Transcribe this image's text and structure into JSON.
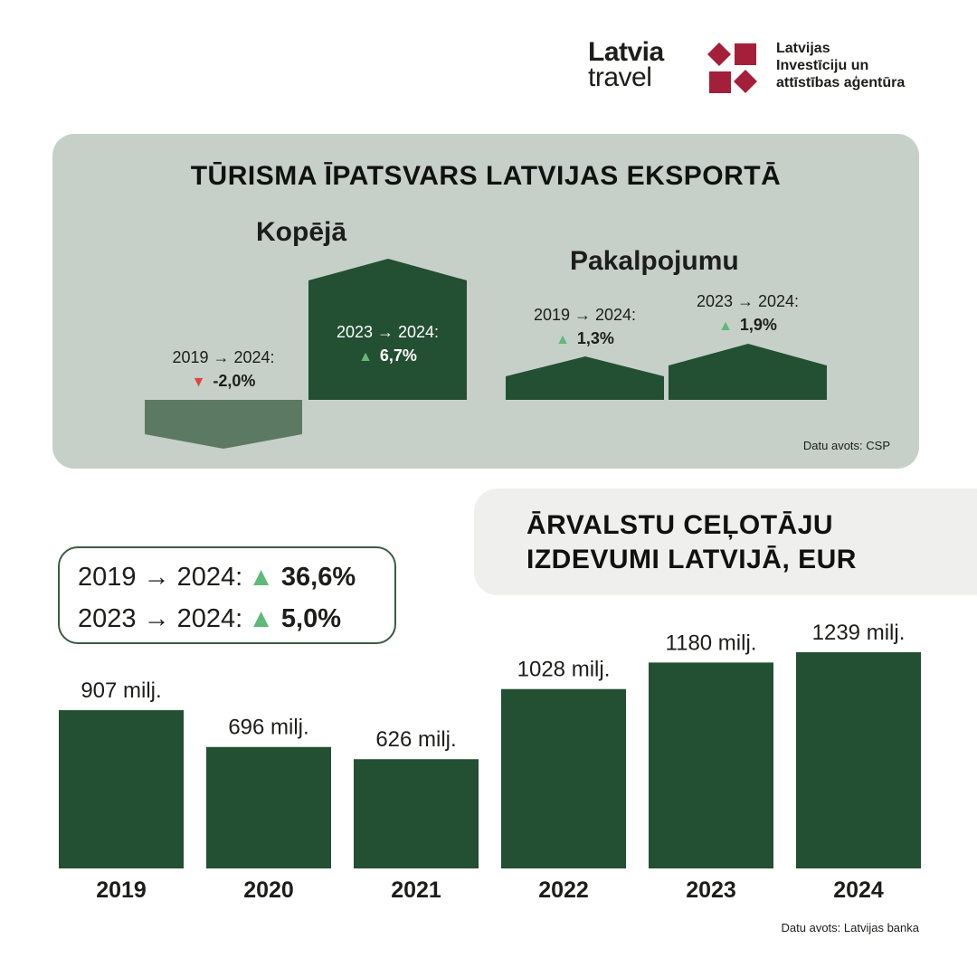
{
  "header": {
    "travel_logo_line1": "Latvia",
    "travel_logo_line2": "travel",
    "agency_line1": "Latvijas",
    "agency_line2": "Investīciju un",
    "agency_line3": "attīstības aģentūra"
  },
  "export_share": {
    "title": "TŪRISMA ĪPATSVARS LATVIJAS EKSPORTĀ",
    "groups": [
      {
        "name": "Kopējā",
        "changes": [
          {
            "period": "2019 → 2024:",
            "value": "-2,0%",
            "direction": "down",
            "pct": -2.0
          },
          {
            "period": "2023 → 2024:",
            "value": "6,7%",
            "direction": "up",
            "pct": 6.7
          }
        ]
      },
      {
        "name": "Pakalpojumu",
        "changes": [
          {
            "period": "2019 → 2024:",
            "value": "1,3%",
            "direction": "up",
            "pct": 1.3
          },
          {
            "period": "2023 → 2024:",
            "value": "1,9%",
            "direction": "up",
            "pct": 1.9
          }
        ]
      }
    ],
    "source": "Datu avots: CSP"
  },
  "spending": {
    "title_line1": "ĀRVALSTU CEĻOTĀJU",
    "title_line2": "IZDEVUMI LATVIJĀ, EUR",
    "change_1_period": "2019 → 2024:",
    "change_1_value": "36,6%",
    "change_2_period": "2023 → 2024:",
    "change_2_value": "5,0%",
    "source": "Datu avots: Latvijas banka"
  },
  "chart_data": {
    "type": "bar",
    "categories": [
      "2019",
      "2020",
      "2021",
      "2022",
      "2023",
      "2024"
    ],
    "values": [
      907,
      696,
      626,
      1028,
      1180,
      1239
    ],
    "value_labels": [
      "907 milj.",
      "696 milj.",
      "626 milj.",
      "1028 milj.",
      "1180 milj.",
      "1239 milj."
    ],
    "title": "ĀRVALSTU CEĻOTĀJU IZDEVUMI LATVIJĀ, EUR",
    "ylim": [
      0,
      1239
    ],
    "grid": false
  },
  "colors": {
    "bar": "#234f33",
    "panel": "#c6d0c8",
    "negative_block": "#5c7a63",
    "up": "#5fb97b",
    "down": "#e0443e",
    "brand_red": "#a31f3a"
  }
}
